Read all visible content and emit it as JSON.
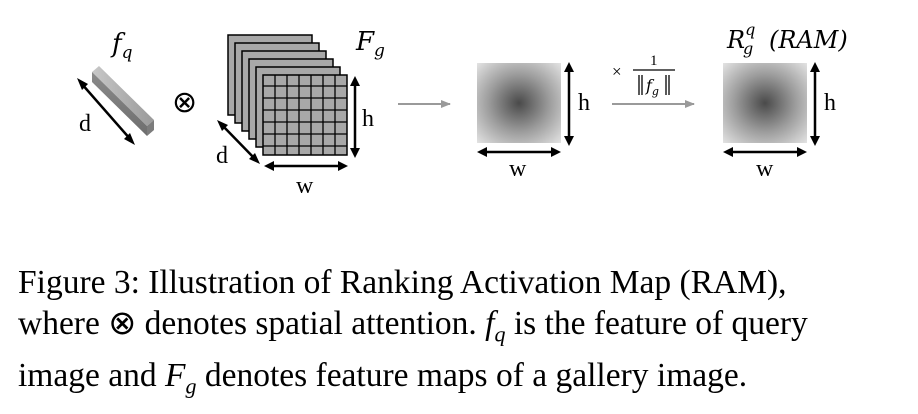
{
  "diagram": {
    "fq_label": "f",
    "fq_sub": "q",
    "Fg_label": "F",
    "Fg_sub": "g",
    "ram_label": "R",
    "ram_sub": "g",
    "ram_sup": "q",
    "ram_paren": "(RAM)",
    "operator": "⊗",
    "dim_d": "d",
    "dim_h": "h",
    "dim_w": "w",
    "scale_times": "×",
    "scale_num": "1",
    "scale_den_f": "f",
    "scale_den_sub": "g"
  },
  "caption": {
    "line1": "Figure 3: Illustration of Ranking Activation Map (RAM),",
    "l2_a": "where",
    "l2_otimes": "⊗",
    "l2_b": "denotes spatial attention.",
    "l2_f": "f",
    "l2_q": "q",
    "l2_c": "is the feature of query",
    "l3_a": "image and",
    "l3_F": "F",
    "l3_g": "g",
    "l3_b": "denotes feature maps of a gallery image."
  }
}
